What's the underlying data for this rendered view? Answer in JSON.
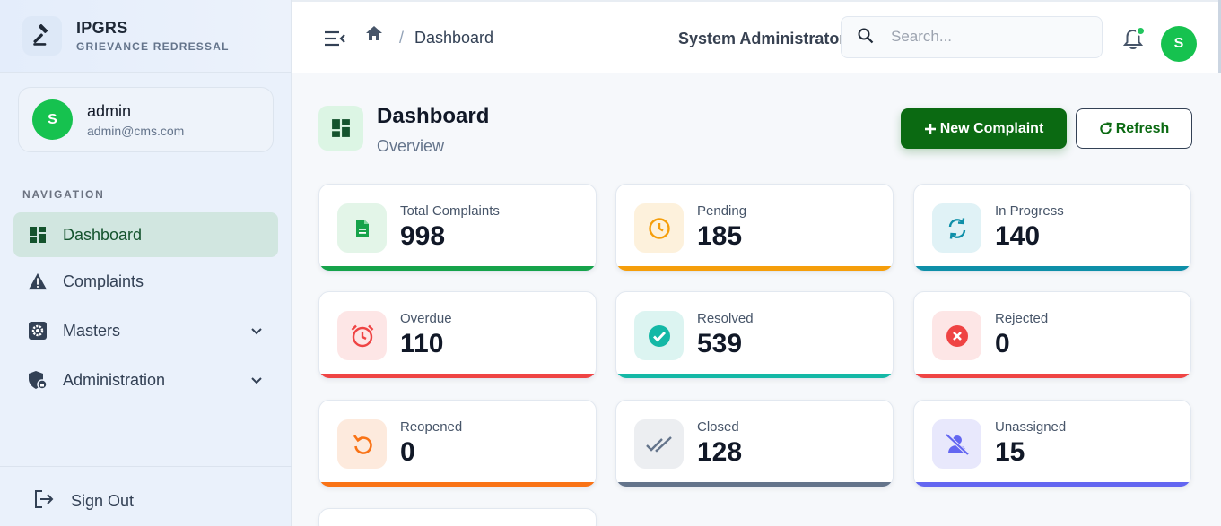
{
  "brand": {
    "title": "IPGRS",
    "subtitle": "GRIEVANCE REDRESSAL"
  },
  "user": {
    "initial": "S",
    "name": "admin",
    "email": "admin@cms.com"
  },
  "nav": {
    "heading": "NAVIGATION",
    "items": [
      {
        "label": "Dashboard",
        "icon": "dashboard-grid-icon",
        "active": true
      },
      {
        "label": "Complaints",
        "icon": "warning-triangle-icon"
      },
      {
        "label": "Masters",
        "icon": "gear-box-icon",
        "has_submenu": true
      },
      {
        "label": "Administration",
        "icon": "shield-lock-icon",
        "has_submenu": true
      }
    ],
    "signout": "Sign Out"
  },
  "header": {
    "breadcrumb_sep": "/",
    "breadcrumb_current": "Dashboard",
    "role": "System Administrator",
    "search_placeholder": "Search...",
    "avatar_initial": "S"
  },
  "page": {
    "title": "Dashboard",
    "subtitle": "Overview",
    "new_button": "New Complaint",
    "refresh_button": "Refresh"
  },
  "stats": [
    {
      "label": "Total Complaints",
      "value": "998",
      "icon": "document-icon",
      "color": "#16a34a",
      "tint": "#e3f5e8"
    },
    {
      "label": "Pending",
      "value": "185",
      "icon": "clock-icon",
      "color": "#f59e0b",
      "tint": "#fdf1dc"
    },
    {
      "label": "In Progress",
      "value": "140",
      "icon": "sync-icon",
      "color": "#0e8fa8",
      "tint": "#e0f2f6"
    },
    {
      "label": "Overdue",
      "value": "110",
      "icon": "alarm-clock-icon",
      "color": "#ef4444",
      "tint": "#fde6e6"
    },
    {
      "label": "Resolved",
      "value": "539",
      "icon": "check-circle-icon",
      "color": "#14b8a6",
      "tint": "#dcf4f1"
    },
    {
      "label": "Rejected",
      "value": "0",
      "icon": "x-circle-icon",
      "color": "#ef4444",
      "tint": "#fde6e6"
    },
    {
      "label": "Reopened",
      "value": "0",
      "icon": "undo-icon",
      "color": "#f97316",
      "tint": "#fdeadd"
    },
    {
      "label": "Closed",
      "value": "128",
      "icon": "double-check-icon",
      "color": "#64748b",
      "tint": "#eceef1"
    },
    {
      "label": "Unassigned",
      "value": "15",
      "icon": "user-slash-icon",
      "color": "#6366f1",
      "tint": "#e8e8fc"
    }
  ]
}
